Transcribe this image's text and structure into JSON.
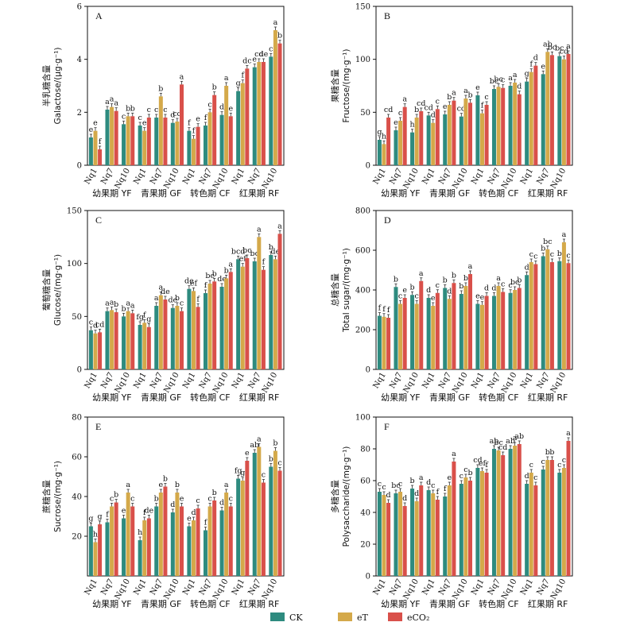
{
  "legend": [
    {
      "label": "CK",
      "color": "#2e8b7f"
    },
    {
      "label": "eT",
      "color": "#d4a94a"
    },
    {
      "label": "eCO₂",
      "color": "#d9504a"
    }
  ],
  "chart_data": [
    {
      "type": "bar",
      "panel": "A",
      "ylabel": [
        "半乳糖含量",
        "Galactose/(μg·g⁻¹)"
      ],
      "ylim": [
        0,
        6
      ],
      "yticks": [
        0,
        2,
        4,
        6
      ],
      "categories": [
        "Nq1",
        "Nq7",
        "Nq10",
        "Nq1",
        "Nq7",
        "Nq10",
        "Nq1",
        "Nq7",
        "Nq10",
        "Nq1",
        "Nq7",
        "Nq10"
      ],
      "stages": [
        "幼果期 YF",
        "青果期 GF",
        "转色期 CF",
        "红果期 RF"
      ],
      "series": [
        {
          "name": "CK",
          "values": [
            1.05,
            2.1,
            1.55,
            1.5,
            1.8,
            1.6,
            1.3,
            1.5,
            1.9,
            2.8,
            3.7,
            4.1
          ],
          "labels": [
            "e",
            "a",
            "c",
            "c",
            "c",
            "d",
            "f",
            "f",
            "d",
            "g",
            "e",
            "c"
          ]
        },
        {
          "name": "eT",
          "values": [
            1.3,
            2.2,
            1.85,
            1.3,
            2.6,
            1.65,
            1.0,
            2.0,
            3.0,
            3.1,
            3.9,
            5.1
          ],
          "labels": [
            "e",
            "a",
            "b",
            "e",
            "b",
            "cd",
            "f",
            "c",
            "a",
            "f",
            "cd",
            "a"
          ]
        },
        {
          "name": "eCO₂",
          "values": [
            0.6,
            2.05,
            1.85,
            1.8,
            1.8,
            3.05,
            1.45,
            2.65,
            1.85,
            3.65,
            3.9,
            4.6
          ],
          "labels": [
            "f",
            "a",
            "b",
            "c",
            "c",
            "a",
            "e",
            "b",
            "e",
            "dc",
            "de",
            "b"
          ]
        }
      ]
    },
    {
      "type": "bar",
      "panel": "B",
      "ylabel": [
        "果糖含量",
        "Fructose/(mg·g⁻¹)"
      ],
      "ylim": [
        0,
        150
      ],
      "yticks": [
        0,
        50,
        100,
        150
      ],
      "categories": [
        "Nq1",
        "Nq7",
        "Nq10",
        "Nq1",
        "Nq7",
        "Nq10",
        "Nq1",
        "Nq7",
        "Nq10",
        "Nq1",
        "Nq7",
        "Nq10"
      ],
      "stages": [
        "幼果期 YF",
        "青果期 GF",
        "转色期 CF",
        "红果期 RF"
      ],
      "series": [
        {
          "name": "CK",
          "values": [
            24,
            33,
            31,
            47,
            48,
            46,
            66,
            72,
            75,
            79,
            86,
            103
          ],
          "labels": [
            "g",
            "e",
            "h",
            "cd",
            "e",
            "cd",
            "e",
            "bc",
            "a",
            "g",
            "e",
            "bc"
          ]
        },
        {
          "name": "eT",
          "values": [
            20,
            42,
            45,
            40,
            57,
            63,
            49,
            74,
            78,
            88,
            107,
            100
          ],
          "labels": [
            "h",
            "c",
            "b",
            "d",
            "b",
            "a",
            "f",
            "bc",
            "a",
            "f",
            "ab",
            "cd"
          ]
        },
        {
          "name": "eCO₂",
          "values": [
            45,
            55,
            51,
            53,
            61,
            59,
            57,
            73,
            67,
            94,
            104,
            105
          ],
          "labels": [
            "cd",
            "a",
            "cd",
            "c",
            "a",
            "b",
            "c",
            "c",
            "d",
            "d",
            "bc",
            "a"
          ]
        }
      ]
    },
    {
      "type": "bar",
      "panel": "C",
      "ylabel": [
        "葡萄糖含量",
        "Glucose/(mg·g⁻¹)"
      ],
      "ylim": [
        0,
        150
      ],
      "yticks": [
        0,
        50,
        100,
        150
      ],
      "categories": [
        "Nq1",
        "Nq7",
        "Nq10",
        "Nq1",
        "Nq7",
        "Nq10",
        "Nq1",
        "Nq7",
        "Nq10",
        "Nq1",
        "Nq7",
        "Nq10"
      ],
      "stages": [
        "幼果期 YF",
        "青果期 GF",
        "转色期 CF",
        "红果期 RF"
      ],
      "series": [
        {
          "name": "CK",
          "values": [
            37,
            55,
            50,
            42,
            60,
            58,
            76,
            72,
            78,
            104,
            102,
            108
          ],
          "labels": [
            "c",
            "a",
            "b",
            "fg",
            "a",
            "de",
            "de",
            "f",
            "de",
            "bcd",
            "bc",
            "b"
          ]
        },
        {
          "name": "eT",
          "values": [
            34,
            56,
            55,
            44,
            70,
            60,
            74,
            81,
            86,
            97,
            125,
            104
          ],
          "labels": [
            "d",
            "a",
            "a",
            "f",
            "a",
            "b",
            "ef",
            "bc",
            "b",
            "ef",
            "a",
            "de"
          ]
        },
        {
          "name": "eCO₂",
          "values": [
            35,
            54,
            53,
            40,
            66,
            55,
            59,
            83,
            92,
            105,
            94,
            128
          ],
          "labels": [
            "cd",
            "b",
            "a",
            "g",
            "de",
            "c",
            "f",
            "b",
            "a",
            "bc",
            "f",
            "a"
          ]
        }
      ]
    },
    {
      "type": "bar",
      "panel": "D",
      "ylabel": [
        "总糖含量",
        "Total sugar/(mg·g⁻¹)"
      ],
      "ylim": [
        0,
        800
      ],
      "yticks": [
        0,
        200,
        400,
        600,
        800
      ],
      "categories": [
        "Nq1",
        "Nq7",
        "Nq10",
        "Nq1",
        "Nq7",
        "Nq10",
        "Nq1",
        "Nq7",
        "Nq10",
        "Nq1",
        "Nq7",
        "Nq10"
      ],
      "stages": [
        "幼果期 YF",
        "青果期 GF",
        "转色期 CF",
        "红果期 RF"
      ],
      "series": [
        {
          "name": "CK",
          "values": [
            270,
            415,
            375,
            360,
            410,
            380,
            330,
            370,
            385,
            475,
            570,
            545
          ],
          "labels": [
            "f",
            "b",
            "b",
            "d",
            "b",
            "b",
            "e",
            "d",
            "c",
            "d",
            "b",
            "b"
          ]
        },
        {
          "name": "eT",
          "values": [
            265,
            330,
            330,
            320,
            355,
            420,
            325,
            420,
            400,
            540,
            605,
            640
          ],
          "labels": [
            "f",
            "c",
            "c",
            "e",
            "d",
            "b",
            "e",
            "a",
            "bc",
            "c",
            "bc",
            "a"
          ]
        },
        {
          "name": "eCO₂",
          "values": [
            260,
            360,
            445,
            385,
            435,
            480,
            370,
            390,
            410,
            530,
            540,
            535
          ],
          "labels": [
            "f",
            "e",
            "a",
            "c",
            "b",
            "a",
            "d",
            "c",
            "b",
            "c",
            "c",
            "c"
          ]
        }
      ]
    },
    {
      "type": "bar",
      "panel": "E",
      "ylabel": [
        "蔗糖含量",
        "Sucrose/(mg·g⁻¹)"
      ],
      "ylim": [
        0,
        80
      ],
      "yticks": [
        20,
        40,
        60,
        80
      ],
      "categories": [
        "Nq1",
        "Nq7",
        "Nq10",
        "Nq1",
        "Nq7",
        "Nq10",
        "Nq1",
        "Nq7",
        "Nq10",
        "Nq1",
        "Nq7",
        "Nq10"
      ],
      "stages": [
        "幼果期 YF",
        "青果期 GF",
        "转色期 CF",
        "红果期 RF"
      ],
      "series": [
        {
          "name": "CK",
          "values": [
            25,
            27,
            29,
            18,
            35,
            32,
            25,
            23,
            33,
            49,
            62,
            55
          ],
          "labels": [
            "g",
            "f",
            "e",
            "h",
            "b",
            "d",
            "e",
            "f",
            "d",
            "fg",
            "ab",
            "b"
          ]
        },
        {
          "name": "eT",
          "values": [
            17,
            35,
            42,
            28,
            42,
            42,
            28,
            35,
            42,
            48,
            65,
            63
          ],
          "labels": [
            "h",
            "c",
            "a",
            "f",
            "e",
            "b",
            "d",
            "c",
            "a",
            "g",
            "a",
            "b"
          ]
        },
        {
          "name": "eCO₂",
          "values": [
            26,
            37,
            35,
            29,
            45,
            35,
            34,
            38,
            35,
            58,
            47,
            53
          ],
          "labels": [
            "g",
            "b",
            "c",
            "de",
            "b",
            "e",
            "c",
            "b",
            "c",
            "e",
            "c",
            "c"
          ]
        }
      ]
    },
    {
      "type": "bar",
      "panel": "F",
      "ylabel": [
        "多糖含量",
        "Polysaccharide/(mg·g⁻¹)"
      ],
      "ylim": [
        0,
        100
      ],
      "yticks": [
        0,
        20,
        40,
        60,
        80,
        100
      ],
      "categories": [
        "Nq1",
        "Nq7",
        "Nq10",
        "Nq1",
        "Nq7",
        "Nq10",
        "Nq1",
        "Nq7",
        "Nq10",
        "Nq1",
        "Nq7",
        "Nq10"
      ],
      "stages": [
        "幼果期 YF",
        "青果期 GF",
        "转色期 CF",
        "红果期 RF"
      ],
      "series": [
        {
          "name": "CK",
          "values": [
            53,
            52,
            55,
            54,
            50,
            58,
            68,
            80,
            80,
            58,
            67,
            65
          ],
          "labels": [
            "c",
            "bc",
            "b",
            "d",
            "f",
            "c",
            "cd",
            "ab",
            "ab",
            "d",
            "c",
            "c"
          ]
        },
        {
          "name": "eT",
          "values": [
            51,
            53,
            47,
            52,
            57,
            62,
            66,
            79,
            82,
            65,
            73,
            68
          ],
          "labels": [
            "c",
            "c",
            "d",
            "c",
            "e",
            "c",
            "ef",
            "bc",
            "a",
            "c",
            "b",
            "c"
          ]
        },
        {
          "name": "eCO₂",
          "values": [
            46,
            44,
            57,
            48,
            72,
            60,
            65,
            76,
            83,
            57,
            73,
            85
          ],
          "labels": [
            "d",
            "d",
            "a",
            "f",
            "a",
            "b",
            "f",
            "cd",
            "ab",
            "c",
            "b",
            "a"
          ]
        }
      ]
    }
  ]
}
